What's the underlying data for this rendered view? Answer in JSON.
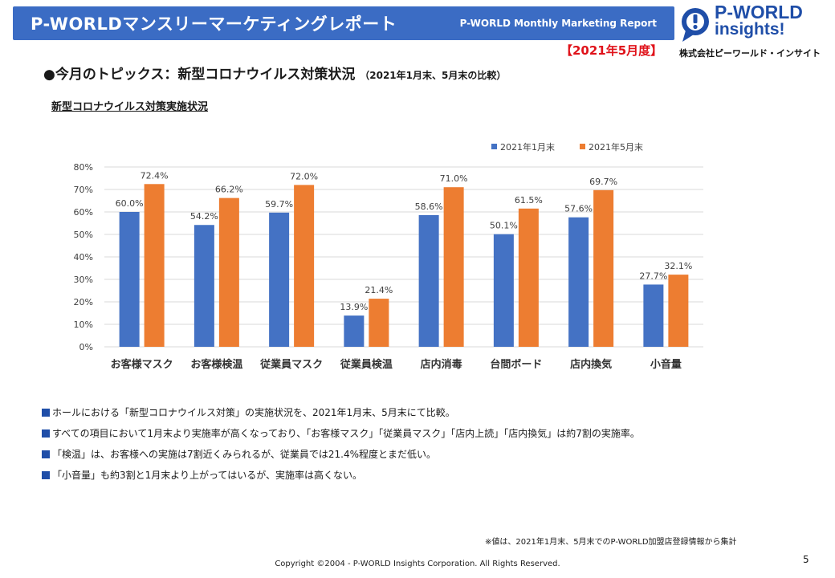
{
  "header": {
    "title": "P-WORLDマンスリーマーケティングレポート",
    "subtitle": "P-WORLD Monthly Marketing Report",
    "period": "【2021年5月度】"
  },
  "logo": {
    "line1": "P-WORLD",
    "line2": "insights!",
    "company": "株式会社ピーワールド・インサイト"
  },
  "topic": {
    "title": "●今月のトピックス：新型コロナウイルス対策状況",
    "note": "（2021年1月末、5月末の比較）"
  },
  "chart_title": "新型コロナウイルス対策実施状況",
  "chart_data": {
    "type": "bar",
    "categories": [
      "お客様マスク",
      "お客様検温",
      "従業員マスク",
      "従業員検温",
      "店内消毒",
      "台間ボード",
      "店内換気",
      "小音量"
    ],
    "series": [
      {
        "name": "2021年1月末",
        "values": [
          60.0,
          54.2,
          59.7,
          13.9,
          58.6,
          50.1,
          57.6,
          27.7
        ],
        "color": "#4472c4"
      },
      {
        "name": "2021年5月末",
        "values": [
          72.4,
          66.2,
          72.0,
          21.4,
          71.0,
          61.5,
          69.7,
          32.1
        ],
        "color": "#ed7d31"
      }
    ],
    "ylim": [
      0,
      80
    ],
    "yticks": [
      "0%",
      "10%",
      "20%",
      "30%",
      "40%",
      "50%",
      "60%",
      "70%",
      "80%"
    ],
    "value_suffix": "%",
    "grid": true,
    "legend": "top-right"
  },
  "notes": [
    "ホールにおける「新型コロナウイルス対策」の実施状況を、2021年1月末、5月末にて比較。",
    "すべての項目において1月末より実施率が高くなっており、「お客様マスク」「従業員マスク」「店内上読」「店内換気」は約7割の実施率。",
    "「検温」は、お客様への実施は7割近くみられるが、従業員では21.4%程度とまだ低い。",
    "「小音量」も約3割と1月末より上がってはいるが、実施率は高くない。"
  ],
  "source": "※値は、2021年1月末、5月末でのP-WORLD加盟店登録情報から集計",
  "copyright": "Copyright ©2004 -  P-WORLD Insights Corporation. All Rights Reserved.",
  "page_number": "5"
}
